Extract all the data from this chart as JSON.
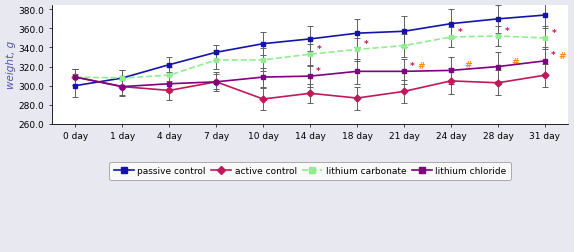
{
  "x_labels": [
    "0 day",
    "1 day",
    "4 day",
    "7 day",
    "10 day",
    "14 day",
    "18 day",
    "21 day",
    "24 day",
    "28 day",
    "31 day"
  ],
  "passive_control": [
    300,
    308,
    322,
    335,
    344,
    349,
    355,
    357,
    365,
    370,
    374
  ],
  "passive_control_err": [
    12,
    8,
    8,
    8,
    12,
    13,
    15,
    16,
    15,
    15,
    14
  ],
  "active_control": [
    309,
    299,
    295,
    304,
    286,
    292,
    287,
    294,
    305,
    303,
    311
  ],
  "active_control_err": [
    8,
    10,
    10,
    8,
    12,
    10,
    12,
    12,
    14,
    13,
    12
  ],
  "lithium_carbonate": [
    309,
    308,
    311,
    327,
    327,
    333,
    338,
    342,
    351,
    352,
    350
  ],
  "lithium_carbonate_err": [
    8,
    8,
    9,
    10,
    12,
    11,
    12,
    12,
    10,
    10,
    12
  ],
  "lithium_chloride": [
    309,
    299,
    302,
    304,
    309,
    310,
    315,
    315,
    316,
    320,
    326
  ],
  "lithium_chloride_err": [
    8,
    9,
    9,
    10,
    10,
    11,
    13,
    13,
    14,
    15,
    14
  ],
  "passive_color": "#1414AA",
  "active_color": "#C2185B",
  "carbonate_color": "#90EE90",
  "chloride_color": "#800080",
  "ylim": [
    260,
    385
  ],
  "yticks": [
    260.0,
    280.0,
    300.0,
    320.0,
    340.0,
    360.0,
    380.0
  ],
  "ylabel": "weight, g",
  "carbonate_star_days": [
    14,
    18,
    24,
    28,
    31
  ],
  "chloride_star_days": [
    14,
    21,
    31
  ],
  "chloride_hash_days": [
    21,
    24,
    28,
    31
  ],
  "background_color": "#e8e8f0",
  "plot_bg": "#ffffff"
}
